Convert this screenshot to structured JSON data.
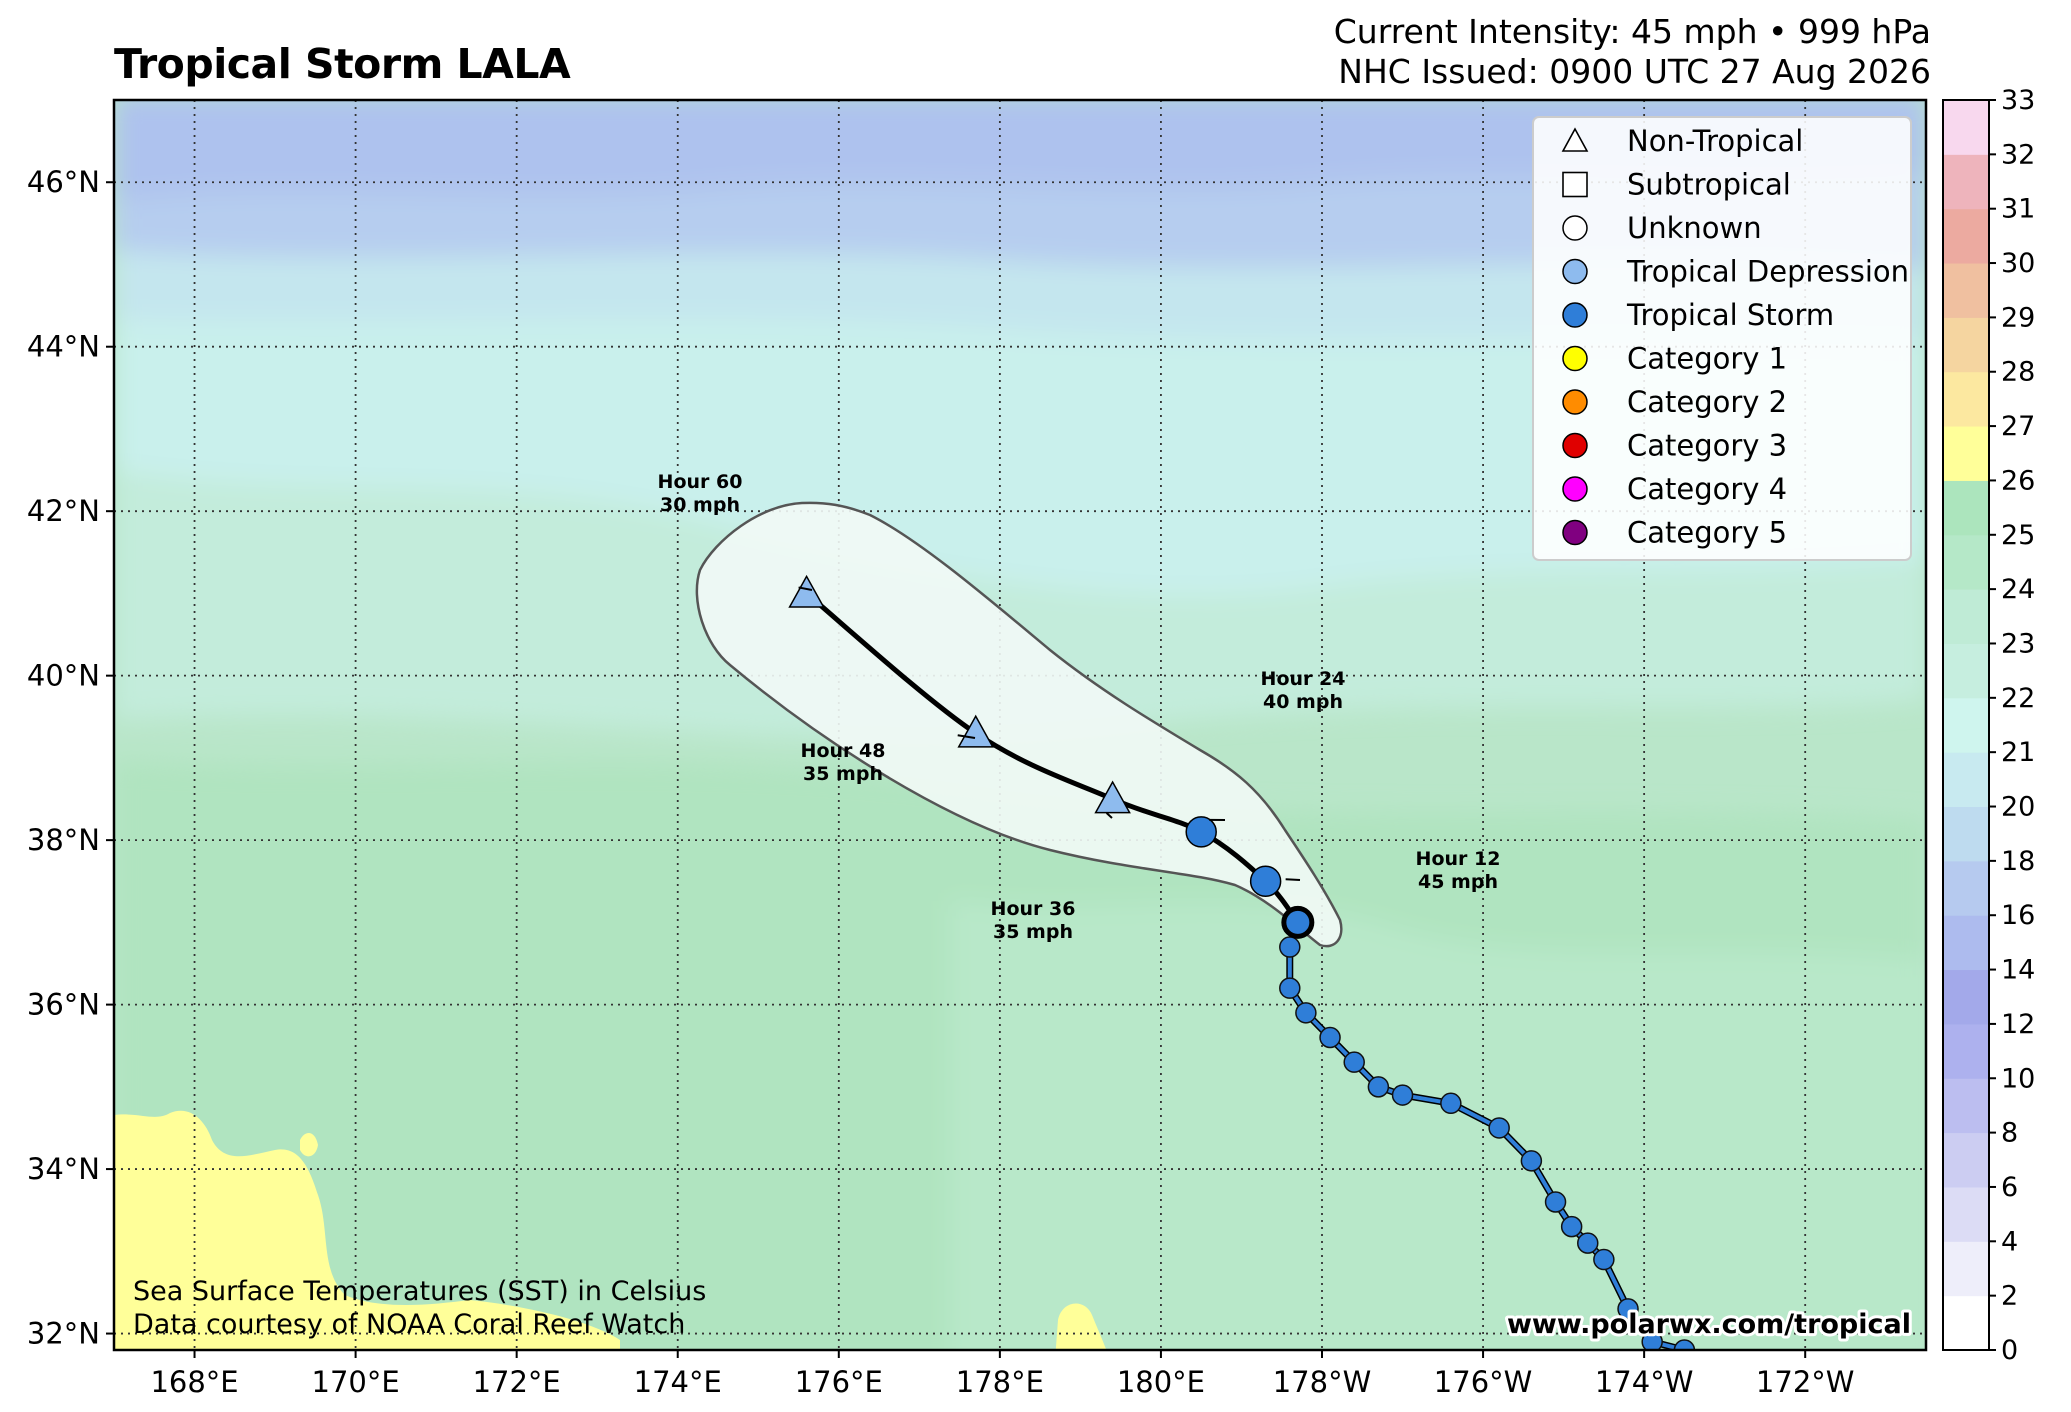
{
  "header": {
    "title": "Tropical Storm LALA",
    "intensity": "Current Intensity: 45 mph • 999 hPa",
    "issued": "NHC Issued: 0900 UTC 27 Aug 2026"
  },
  "map": {
    "lat_range": [
      31.8,
      47.0
    ],
    "lon_range": [
      167.0,
      189.5
    ],
    "lat_ticks": [
      {
        "v": 32,
        "label": "32°N"
      },
      {
        "v": 34,
        "label": "34°N"
      },
      {
        "v": 36,
        "label": "36°N"
      },
      {
        "v": 38,
        "label": "38°N"
      },
      {
        "v": 40,
        "label": "40°N"
      },
      {
        "v": 42,
        "label": "42°N"
      },
      {
        "v": 44,
        "label": "44°N"
      },
      {
        "v": 46,
        "label": "46°N"
      }
    ],
    "lon_ticks": [
      {
        "v": 168,
        "label": "168°E"
      },
      {
        "v": 170,
        "label": "170°E"
      },
      {
        "v": 172,
        "label": "172°E"
      },
      {
        "v": 174,
        "label": "174°E"
      },
      {
        "v": 176,
        "label": "176°E"
      },
      {
        "v": 178,
        "label": "178°E"
      },
      {
        "v": 180,
        "label": "180°E"
      },
      {
        "v": 182,
        "label": "178°W"
      },
      {
        "v": 184,
        "label": "176°W"
      },
      {
        "v": 186,
        "label": "174°W"
      },
      {
        "v": 188,
        "label": "172°W"
      }
    ],
    "grid": true,
    "projection_note": "longitudes east of 180° shown as W"
  },
  "colors": {
    "tropical_depression": "#8ebbee",
    "tropical_storm": "#2f7ed8",
    "cat1": "#ffff00",
    "cat2": "#ff8c00",
    "cat3": "#e00000",
    "cat4": "#ff00ff",
    "cat5": "#800080",
    "cone_fill": "#f2faf6",
    "cone_edge": "#555555",
    "track": "#000000",
    "past_track": "#1f5fa8"
  },
  "past_track": [
    {
      "lat": 31.8,
      "lon": 186.5
    },
    {
      "lat": 31.9,
      "lon": 186.1
    },
    {
      "lat": 32.3,
      "lon": 185.8
    },
    {
      "lat": 32.9,
      "lon": 185.5
    },
    {
      "lat": 33.1,
      "lon": 185.3
    },
    {
      "lat": 33.3,
      "lon": 185.1
    },
    {
      "lat": 33.6,
      "lon": 184.9
    },
    {
      "lat": 34.1,
      "lon": 184.6
    },
    {
      "lat": 34.5,
      "lon": 184.2
    },
    {
      "lat": 34.8,
      "lon": 183.6
    },
    {
      "lat": 34.9,
      "lon": 183.0
    },
    {
      "lat": 35.0,
      "lon": 182.7
    },
    {
      "lat": 35.3,
      "lon": 182.4
    },
    {
      "lat": 35.6,
      "lon": 182.1
    },
    {
      "lat": 35.9,
      "lon": 181.8
    },
    {
      "lat": 36.2,
      "lon": 181.6
    },
    {
      "lat": 36.7,
      "lon": 181.6
    },
    {
      "lat": 37.0,
      "lon": 181.7
    }
  ],
  "forecast_track": [
    {
      "hour": 0,
      "lat": 37.0,
      "lon": 181.7,
      "type": "current",
      "label1": "",
      "label2": ""
    },
    {
      "hour": 12,
      "lat": 37.5,
      "lon": 181.3,
      "type": "tropical_storm",
      "label1": "Hour 12",
      "label2": "45 mph"
    },
    {
      "hour": 24,
      "lat": 38.1,
      "lon": 180.5,
      "type": "tropical_storm",
      "label1": "Hour 24",
      "label2": "40 mph"
    },
    {
      "hour": 36,
      "lat": 38.5,
      "lon": 179.4,
      "type": "non_tropical",
      "label1": "Hour 36",
      "label2": "35 mph"
    },
    {
      "hour": 48,
      "lat": 39.3,
      "lon": 177.7,
      "type": "non_tropical",
      "label1": "Hour 48",
      "label2": "35 mph"
    },
    {
      "hour": 60,
      "lat": 41.0,
      "lon": 175.6,
      "type": "non_tropical",
      "label1": "Hour 60",
      "label2": "30 mph"
    }
  ],
  "legend": {
    "placement": "top-right",
    "items": [
      {
        "label": "Non-Tropical",
        "shape": "triangle",
        "color": "#ffffff"
      },
      {
        "label": "Subtropical",
        "shape": "square",
        "color": "#ffffff"
      },
      {
        "label": "Unknown",
        "shape": "circle",
        "color": "#ffffff"
      },
      {
        "label": "Tropical Depression",
        "shape": "circle",
        "color": "#8ebbee"
      },
      {
        "label": "Tropical Storm",
        "shape": "circle",
        "color": "#2f7ed8"
      },
      {
        "label": "Category 1",
        "shape": "circle",
        "color": "#ffff00"
      },
      {
        "label": "Category 2",
        "shape": "circle",
        "color": "#ff8c00"
      },
      {
        "label": "Category 3",
        "shape": "circle",
        "color": "#e00000"
      },
      {
        "label": "Category 4",
        "shape": "circle",
        "color": "#ff00ff"
      },
      {
        "label": "Category 5",
        "shape": "circle",
        "color": "#800080"
      }
    ]
  },
  "colorbar": {
    "ticks": [
      "0",
      "2",
      "4",
      "6",
      "8",
      "10",
      "12",
      "14",
      "16",
      "18",
      "20",
      "21",
      "22",
      "23",
      "24",
      "25",
      "26",
      "27",
      "28",
      "29",
      "30",
      "31",
      "32",
      "33"
    ],
    "bands": [
      "#ffffff",
      "#eeeefa",
      "#dcdcf5",
      "#cccdf2",
      "#bcbef0",
      "#adb1ee",
      "#a3a9ea",
      "#adbbee",
      "#b6caef",
      "#bedbef",
      "#c8eaf0",
      "#cff5ee",
      "#c6eedf",
      "#bfebd6",
      "#b5e8c8",
      "#ace5bd",
      "#ffff99",
      "#fce8a0",
      "#f5d5a0",
      "#f0c0a0",
      "#ecaaa0",
      "#eeb4bc",
      "#f8d8ee"
    ]
  },
  "credits": {
    "line1": "Sea Surface Temperatures (SST) in Celsius",
    "line2": "Data courtesy of NOAA Coral Reef Watch",
    "website": "www.polarwx.com/tropical"
  }
}
